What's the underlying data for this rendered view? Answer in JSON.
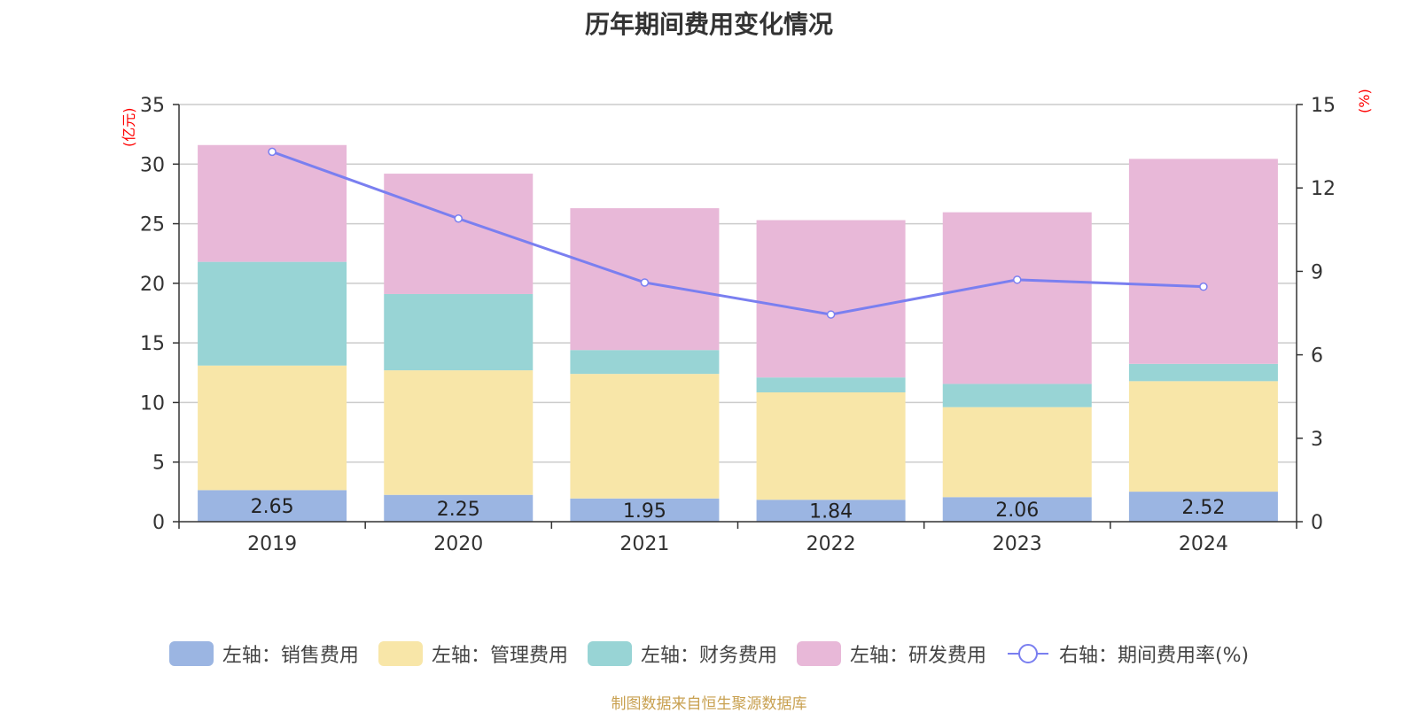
{
  "chart_data": {
    "type": "bar",
    "stacked": true,
    "title": "历年期间费用变化情况",
    "categories": [
      "2019",
      "2020",
      "2021",
      "2022",
      "2023",
      "2024"
    ],
    "y_left": {
      "unit": "(亿元)",
      "ylim": [
        0,
        35
      ],
      "ticks": [
        0,
        5,
        10,
        15,
        20,
        25,
        30,
        35
      ]
    },
    "y_right": {
      "unit": "(%)",
      "ylim": [
        0,
        15
      ],
      "ticks": [
        0,
        3,
        6,
        9,
        12,
        15
      ]
    },
    "series": [
      {
        "name": "左轴：销售费用",
        "axis": "left",
        "type": "bar",
        "color": "#9bb5e2",
        "values": [
          2.65,
          2.25,
          1.95,
          1.84,
          2.06,
          2.52
        ],
        "show_labels": true
      },
      {
        "name": "左轴：管理费用",
        "axis": "left",
        "type": "bar",
        "color": "#f8e6a8",
        "values": [
          10.45,
          10.45,
          10.45,
          9.01,
          7.55,
          9.27
        ]
      },
      {
        "name": "左轴：财务费用",
        "axis": "left",
        "type": "bar",
        "color": "#98d4d5",
        "values": [
          8.7,
          6.4,
          2.0,
          1.25,
          1.95,
          1.45
        ]
      },
      {
        "name": "左轴：研发费用",
        "axis": "left",
        "type": "bar",
        "color": "#e8b8d8",
        "values": [
          9.8,
          10.1,
          11.9,
          13.2,
          14.4,
          17.2
        ]
      },
      {
        "name": "右轴：期间费用率(%)",
        "axis": "right",
        "type": "line",
        "color": "#7a7ff0",
        "values": [
          13.3,
          10.9,
          8.6,
          7.45,
          8.7,
          8.45
        ]
      }
    ],
    "grid": true,
    "legend_position": "bottom"
  },
  "source_text": "制图数据来自恒生聚源数据库"
}
